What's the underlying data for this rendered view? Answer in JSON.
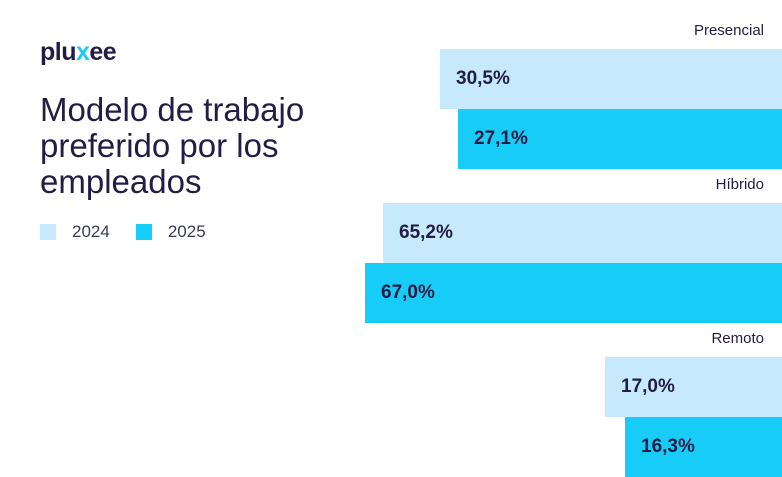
{
  "logo": {
    "pre": "plu",
    "x": "x",
    "post": "ee"
  },
  "title": "Modelo de trabajo preferido por los empleados",
  "colors": {
    "2024": "#c6e9fb",
    "2025": "#18ccf8",
    "text": "#221c46"
  },
  "chart_data": {
    "type": "bar",
    "orientation": "horizontal",
    "title": "Modelo de trabajo preferido por los empleados",
    "categories": [
      "Presencial",
      "Híbrido",
      "Remoto"
    ],
    "series": [
      {
        "name": "2024",
        "values": [
          30.5,
          65.2,
          17.0
        ],
        "labels": [
          "30,5%",
          "65,2%",
          "17,0%"
        ]
      },
      {
        "name": "2025",
        "values": [
          27.1,
          67.0,
          16.3
        ],
        "labels": [
          "27,1%",
          "67,0%",
          "16,3%"
        ]
      }
    ],
    "legend": [
      "2024",
      "2025"
    ],
    "legend_position": "left",
    "unit": "%",
    "grid": false
  }
}
